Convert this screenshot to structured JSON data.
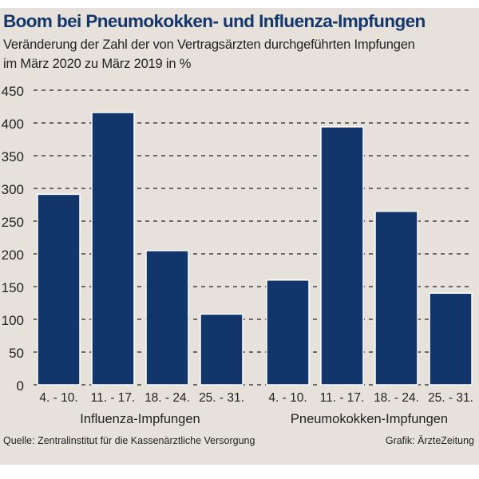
{
  "chart_data": {
    "type": "bar",
    "title": "Boom bei Pneumokokken- und Influenza-Impfungen",
    "subtitle_lines": [
      "Veränderung der Zahl der von Vertragsärzten durchgeführten Impfungen",
      "im März 2020 zu März 2019 in %"
    ],
    "groups": [
      {
        "name": "Influenza-Impfungen",
        "categories": [
          "4. - 10.",
          "11. - 17.",
          "18. - 24.",
          "25. - 31."
        ],
        "values": [
          291,
          416,
          205,
          108
        ]
      },
      {
        "name": "Pneumokokken-Impfungen",
        "categories": [
          "4. - 10.",
          "11. - 17.",
          "18. - 24.",
          "25. - 31."
        ],
        "values": [
          160,
          394,
          265,
          140
        ]
      }
    ],
    "yticks": [
      0,
      50,
      100,
      150,
      200,
      250,
      300,
      350,
      400,
      450
    ],
    "ylim": [
      0,
      450
    ],
    "grid": "dashed horizontal",
    "bar_color": "#12366b",
    "background": "#e6e2db"
  },
  "footer": {
    "source": "Quelle: Zentralinstitut für die Kassenärztliche Versorgung",
    "credit": "Grafik: ÄrzteZeitung"
  }
}
